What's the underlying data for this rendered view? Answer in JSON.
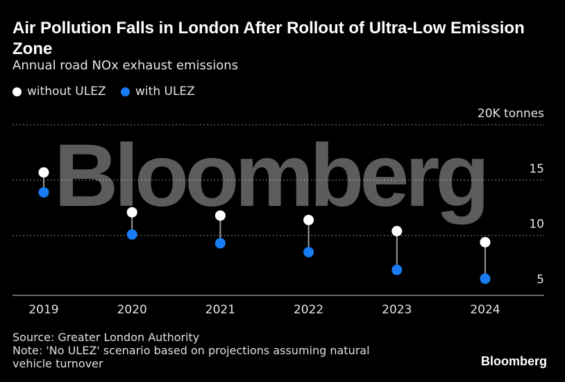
{
  "header": {
    "title": "Air Pollution Falls in London After Rollout of Ultra-Low Emission Zone",
    "subtitle": "Annual road NOx exhaust emissions"
  },
  "legend": [
    {
      "label": "without ULEZ",
      "color": "#ffffff"
    },
    {
      "label": "with ULEZ",
      "color": "#1a7cf5"
    }
  ],
  "footer": {
    "source": "Source: Greater London Authority",
    "note": "Note: 'No ULEZ' scenario based on projections assuming natural vehicle turnover"
  },
  "branding": {
    "watermark": "Bloomberg",
    "logo": "Bloomberg"
  },
  "chart_data": {
    "type": "scatter",
    "subtype": "dumbbell",
    "categories": [
      "2019",
      "2020",
      "2021",
      "2022",
      "2023",
      "2024"
    ],
    "series": [
      {
        "name": "without ULEZ",
        "color": "#ffffff",
        "values": [
          15.7,
          12.1,
          11.8,
          11.4,
          10.4,
          9.4
        ]
      },
      {
        "name": "with ULEZ",
        "color": "#1a7cf5",
        "values": [
          13.9,
          10.1,
          9.3,
          8.5,
          6.9,
          6.1
        ]
      }
    ],
    "y_unit_label": "20K tonnes",
    "ylim": [
      4.6,
      20
    ],
    "yticks": [
      5,
      10,
      15,
      20
    ],
    "ytick_labels": [
      "5",
      "10",
      "15",
      "20K tonnes"
    ],
    "grid": true,
    "legend_position": "top-left"
  }
}
